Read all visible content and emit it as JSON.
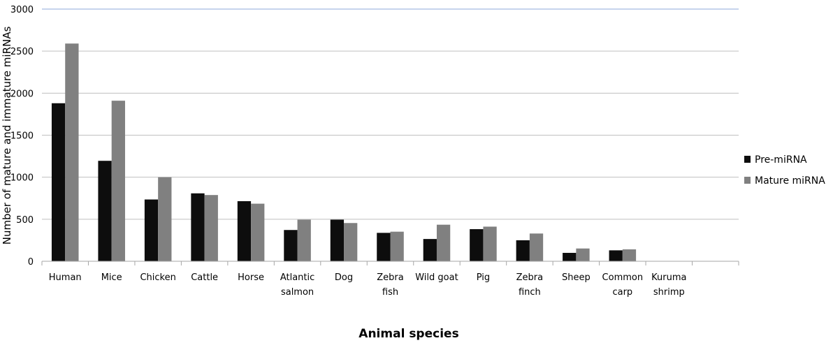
{
  "chart_data": {
    "type": "bar",
    "title": "",
    "xlabel": "Animal species",
    "ylabel": "Number of mature and immature miRNAs",
    "ylim": [
      0,
      3000
    ],
    "yticks": [
      0,
      500,
      1000,
      1500,
      2000,
      2500,
      3000
    ],
    "categories": [
      [
        "Human"
      ],
      [
        "Mice"
      ],
      [
        "Chicken"
      ],
      [
        "Cattle"
      ],
      [
        "Horse"
      ],
      [
        "Atlantic",
        "salmon"
      ],
      [
        "Dog"
      ],
      [
        "Zebra",
        "fish"
      ],
      [
        "Wild goat"
      ],
      [
        "Pig"
      ],
      [
        "Zebra",
        "finch"
      ],
      [
        "Sheep"
      ],
      [
        "Common",
        "carp"
      ],
      [
        "Kuruma",
        "shrimp"
      ],
      [
        ""
      ]
    ],
    "series": [
      {
        "name": "Pre-miRNA",
        "color": "#0d0d0d",
        "values": [
          1880,
          1195,
          735,
          808,
          715,
          372,
          495,
          338,
          265,
          382,
          250,
          100,
          130,
          0,
          null
        ]
      },
      {
        "name": "Mature miRNA",
        "color": "#808080",
        "values": [
          2590,
          1910,
          1000,
          788,
          685,
          495,
          455,
          352,
          435,
          412,
          330,
          152,
          142,
          0,
          null
        ]
      }
    ],
    "grid": true,
    "top_gridline_color": "#8ea9db",
    "legend_position": "right"
  }
}
